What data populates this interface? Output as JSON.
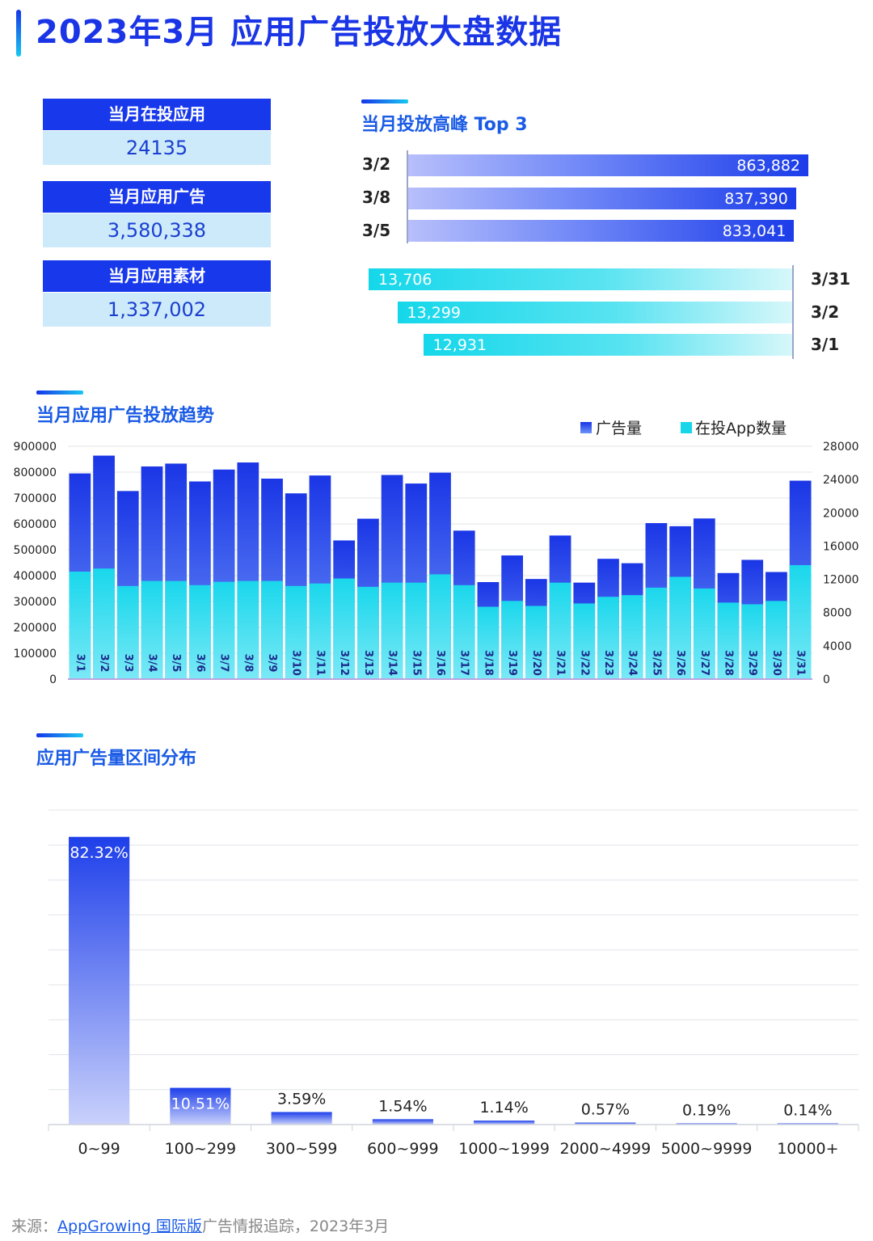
{
  "header": {
    "title": "2023年3月 应用广告投放大盘数据"
  },
  "stats": [
    {
      "label": "当月在投应用",
      "value": "24135"
    },
    {
      "label": "当月应用广告",
      "value": "3,580,338"
    },
    {
      "label": "当月应用素材",
      "value": "1,337,002"
    }
  ],
  "peak": {
    "title": "当月投放高峰 Top 3",
    "ads_top": [
      {
        "date": "3/2",
        "value": 863882,
        "label": "863,882"
      },
      {
        "date": "3/8",
        "value": 837390,
        "label": "837,390"
      },
      {
        "date": "3/5",
        "value": 833041,
        "label": "833,041"
      }
    ],
    "apps_top": [
      {
        "date": "3/31",
        "value": 13706,
        "label": "13,706"
      },
      {
        "date": "3/2",
        "value": 13299,
        "label": "13,299"
      },
      {
        "date": "3/1",
        "value": 12931,
        "label": "12,931"
      }
    ]
  },
  "trend_section": {
    "title": "当月应用广告投放趋势"
  },
  "dist_section": {
    "title": "应用广告量区间分布"
  },
  "footer": {
    "prefix": "来源：",
    "link": "AppGrowing 国际版",
    "suffix": "广告情报追踪，2023年3月"
  },
  "colors": {
    "brand_blue": "#1838ec",
    "cyan": "#18d6ea",
    "light_panel": "#cdeafb"
  },
  "chart_data": [
    {
      "type": "bar",
      "title": "当月应用广告投放趋势",
      "categories": [
        "3/1",
        "3/2",
        "3/3",
        "3/4",
        "3/5",
        "3/6",
        "3/7",
        "3/8",
        "3/9",
        "3/10",
        "3/11",
        "3/12",
        "3/13",
        "3/14",
        "3/15",
        "3/16",
        "3/17",
        "3/18",
        "3/19",
        "3/20",
        "3/21",
        "3/22",
        "3/23",
        "3/24",
        "3/25",
        "3/26",
        "3/27",
        "3/28",
        "3/29",
        "3/30",
        "3/31"
      ],
      "series": [
        {
          "name": "广告量",
          "axis": "left",
          "color": "#1b3ce9",
          "values": [
            795000,
            863882,
            727000,
            822000,
            833041,
            764000,
            810000,
            837390,
            775000,
            718000,
            787000,
            536000,
            620000,
            789000,
            756000,
            798000,
            574000,
            375000,
            478000,
            387000,
            555000,
            373000,
            465000,
            448000,
            603000,
            591000,
            621000,
            410000,
            461000,
            414000,
            767000
          ]
        },
        {
          "name": "在投App数量",
          "axis": "right",
          "color": "#18d6ea",
          "values": [
            12931,
            13299,
            11200,
            11800,
            11800,
            11300,
            11700,
            11800,
            11800,
            11200,
            11500,
            12100,
            11100,
            11600,
            11600,
            12600,
            11300,
            8700,
            9400,
            8800,
            11600,
            9100,
            9900,
            10100,
            11000,
            12300,
            10900,
            9200,
            9000,
            9400,
            13706
          ]
        }
      ],
      "ylim_left": [
        0,
        900000
      ],
      "yticks_left": [
        "0",
        "100000",
        "200000",
        "300000",
        "400000",
        "500000",
        "600000",
        "700000",
        "800000",
        "900000"
      ],
      "ylim_right": [
        0,
        28000
      ],
      "yticks_right": [
        "0",
        "4000",
        "8000",
        "12000",
        "16000",
        "20000",
        "24000",
        "28000"
      ],
      "legend": "top-right",
      "grid": true
    },
    {
      "type": "bar",
      "title": "应用广告量区间分布",
      "categories": [
        "0~99",
        "100~299",
        "300~599",
        "600~999",
        "1000~1999",
        "2000~4999",
        "5000~9999",
        "10000+"
      ],
      "values": [
        82.32,
        10.51,
        3.59,
        1.54,
        1.14,
        0.57,
        0.19,
        0.14
      ],
      "labels": [
        "82.32%",
        "10.51%",
        "3.59%",
        "1.54%",
        "1.14%",
        "0.57%",
        "0.19%",
        "0.14%"
      ],
      "ylim": [
        0,
        90
      ],
      "grid": true
    }
  ]
}
